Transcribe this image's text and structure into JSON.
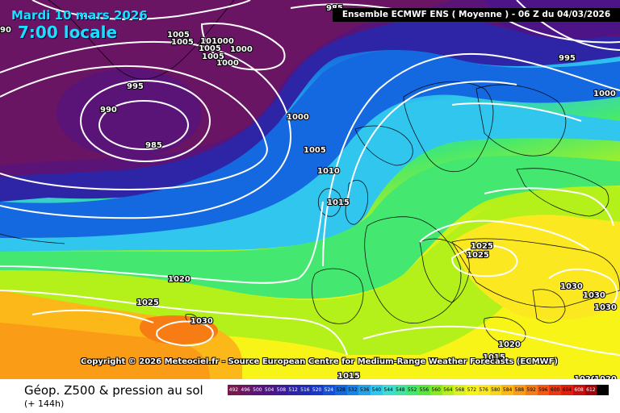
{
  "header": {
    "date": "Mardi 10 mars 2026",
    "local_time": "7:00 locale",
    "run_info": "Ensemble ECMWF ENS  ( Moyenne )  -  06 Z du 04/03/2026"
  },
  "copyright": "Copyright © 2026 Meteociel.fr - Source European Centre for Medium-Range Weather Forecasts (ECMWF)",
  "footer": {
    "title": "Géop. Z500 & pression au sol",
    "lead_time": "(+ 144h)"
  },
  "map_data": {
    "field": "Géopotentiel 500 hPa (dam) + pression au niveau de la mer (hPa)",
    "isobar_labels": [
      {
        "value": "1005"
      },
      {
        "value": "1005"
      },
      {
        "value": "1010"
      },
      {
        "value": "1000"
      },
      {
        "value": "1005"
      },
      {
        "value": "1000"
      },
      {
        "value": "1005"
      },
      {
        "value": "1000"
      },
      {
        "value": "990"
      },
      {
        "value": "995"
      },
      {
        "value": "985"
      },
      {
        "value": "1000"
      },
      {
        "value": "1005"
      },
      {
        "value": "1010"
      },
      {
        "value": "1015"
      },
      {
        "value": "1020"
      },
      {
        "value": "1025"
      },
      {
        "value": "1030"
      },
      {
        "value": "1025"
      },
      {
        "value": "1025"
      },
      {
        "value": "1030"
      },
      {
        "value": "1030"
      },
      {
        "value": "1030"
      },
      {
        "value": "1020"
      },
      {
        "value": "1015"
      },
      {
        "value": "1015"
      },
      {
        "value": "1020"
      },
      {
        "value": "1020"
      },
      {
        "value": "995"
      },
      {
        "value": "1000"
      },
      {
        "value": "985"
      },
      {
        "value": "90"
      }
    ],
    "legend": [
      {
        "value": "492",
        "color": "#7a1650"
      },
      {
        "value": "496",
        "color": "#6a1464"
      },
      {
        "value": "500",
        "color": "#5a1478"
      },
      {
        "value": "504",
        "color": "#4c1486"
      },
      {
        "value": "508",
        "color": "#3e1a96"
      },
      {
        "value": "512",
        "color": "#2e24a6"
      },
      {
        "value": "516",
        "color": "#1e2cb8"
      },
      {
        "value": "520",
        "color": "#1838c8"
      },
      {
        "value": "524",
        "color": "#1450d8"
      },
      {
        "value": "528",
        "color": "#1468e0"
      },
      {
        "value": "532",
        "color": "#1884e6"
      },
      {
        "value": "536",
        "color": "#20a4ec"
      },
      {
        "value": "540",
        "color": "#30c6ee"
      },
      {
        "value": "544",
        "color": "#40dcd4"
      },
      {
        "value": "548",
        "color": "#3ee6a4"
      },
      {
        "value": "552",
        "color": "#44e870"
      },
      {
        "value": "556",
        "color": "#58e838"
      },
      {
        "value": "560",
        "color": "#88ec1c"
      },
      {
        "value": "564",
        "color": "#b4f01a"
      },
      {
        "value": "568",
        "color": "#dcf21c"
      },
      {
        "value": "572",
        "color": "#f8f418"
      },
      {
        "value": "576",
        "color": "#fce820"
      },
      {
        "value": "580",
        "color": "#fcd41c"
      },
      {
        "value": "584",
        "color": "#fcb818"
      },
      {
        "value": "588",
        "color": "#fa9c16"
      },
      {
        "value": "592",
        "color": "#f87c14"
      },
      {
        "value": "596",
        "color": "#f45a12"
      },
      {
        "value": "600",
        "color": "#ec3810"
      },
      {
        "value": "604",
        "color": "#e0200e"
      },
      {
        "value": "608",
        "color": "#c80e0c"
      },
      {
        "value": "612",
        "color": "#a0040a"
      },
      {
        "value": "",
        "color": "#000000"
      }
    ]
  }
}
